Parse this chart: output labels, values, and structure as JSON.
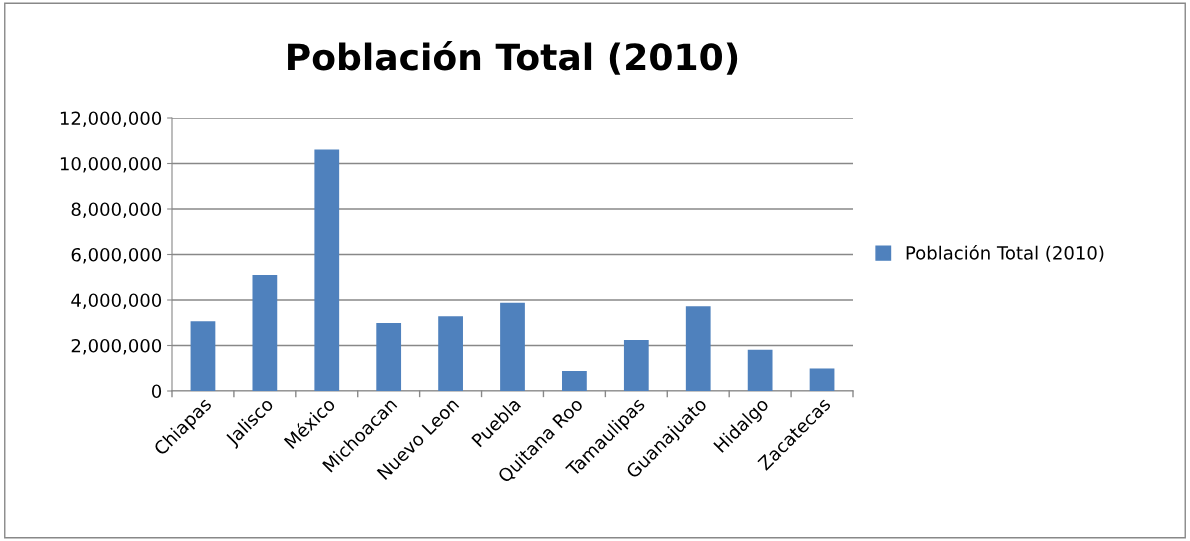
{
  "chart_data": {
    "type": "bar",
    "title": "Población Total (2010)",
    "categories": [
      "Chiapas",
      "Jalisco",
      "México",
      "Michoacan",
      "Nuevo Leon",
      "Puebla",
      "Quitana Roo",
      "Tamaulipas",
      "Guanajuato",
      "Hidalgo",
      "Zacatecas"
    ],
    "series": [
      {
        "name": "Población Total (2010)",
        "color": "#4f81bd",
        "values": [
          3070000,
          5100000,
          10620000,
          2990000,
          3290000,
          3880000,
          880000,
          2240000,
          3720000,
          1810000,
          990000
        ]
      }
    ],
    "ylim": [
      0,
      12000000
    ],
    "yticks": [
      {
        "value": 0,
        "label": "0"
      },
      {
        "value": 2000000,
        "label": "2,000,000"
      },
      {
        "value": 4000000,
        "label": "4,000,000"
      },
      {
        "value": 6000000,
        "label": "6,000,000"
      },
      {
        "value": 8000000,
        "label": "8,000,000"
      },
      {
        "value": 10000000,
        "label": "10,000,000"
      },
      {
        "value": 12000000,
        "label": "12,000,000"
      }
    ],
    "grid": "y",
    "legend": "right"
  }
}
